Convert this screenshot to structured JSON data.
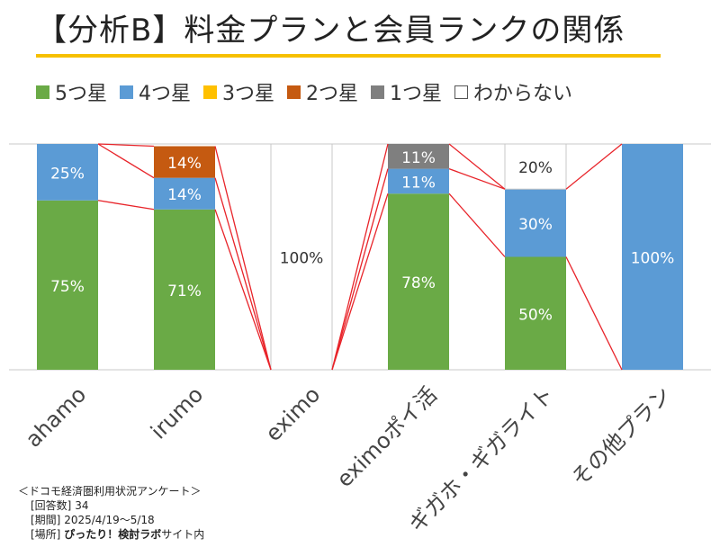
{
  "page_title": "【分析B】料金プランと会員ランクの関係",
  "chart_data": {
    "type": "bar",
    "stacked": true,
    "percent_stacked": true,
    "categories": [
      "ahamo",
      "irumo",
      "eximo",
      "eximoポイ活",
      "ギガホ・ギガライト",
      "その他プラン"
    ],
    "series": [
      {
        "name": "5つ星",
        "color": "#6aaa46",
        "values": [
          75,
          71,
          0,
          78,
          50,
          0
        ]
      },
      {
        "name": "4つ星",
        "color": "#5b9bd5",
        "values": [
          25,
          14,
          0,
          11,
          30,
          100
        ]
      },
      {
        "name": "3つ星",
        "color": "#ffc000",
        "values": [
          0,
          0,
          0,
          0,
          0,
          0
        ]
      },
      {
        "name": "2つ星",
        "color": "#c55a11",
        "values": [
          0,
          14,
          0,
          0,
          0,
          0
        ]
      },
      {
        "name": "1つ星",
        "color": "#7f7f7f",
        "values": [
          0,
          0,
          0,
          11,
          0,
          0
        ]
      },
      {
        "name": "わからない",
        "color": "#ffffff",
        "values": [
          0,
          0,
          100,
          0,
          20,
          0
        ]
      }
    ],
    "data_labels": [
      [
        "75%",
        "25%",
        "",
        "",
        "",
        ""
      ],
      [
        "71%",
        "14%",
        "",
        "14%",
        "",
        ""
      ],
      [
        "",
        "",
        "",
        "",
        "",
        "100%"
      ],
      [
        "78%",
        "11%",
        "",
        "",
        "11%",
        ""
      ],
      [
        "50%",
        "30%",
        "",
        "",
        "",
        "20%"
      ],
      [
        "",
        "100%",
        "",
        "",
        "",
        ""
      ]
    ],
    "ylim": [
      0,
      100
    ],
    "legend_position": "top",
    "series_lines": true,
    "series_line_color": "#e8242a"
  },
  "note": {
    "heading": "＜ドコモ経済圏利用状況アンケート＞",
    "responses_label": "[回答数]",
    "responses_value": "34",
    "period_label": "[期間]",
    "period_value": "2025/4/19〜5/18",
    "place_label": "[場所]",
    "place_bold": "ぴったり！検討ラボ",
    "place_suffix": "サイト内"
  }
}
